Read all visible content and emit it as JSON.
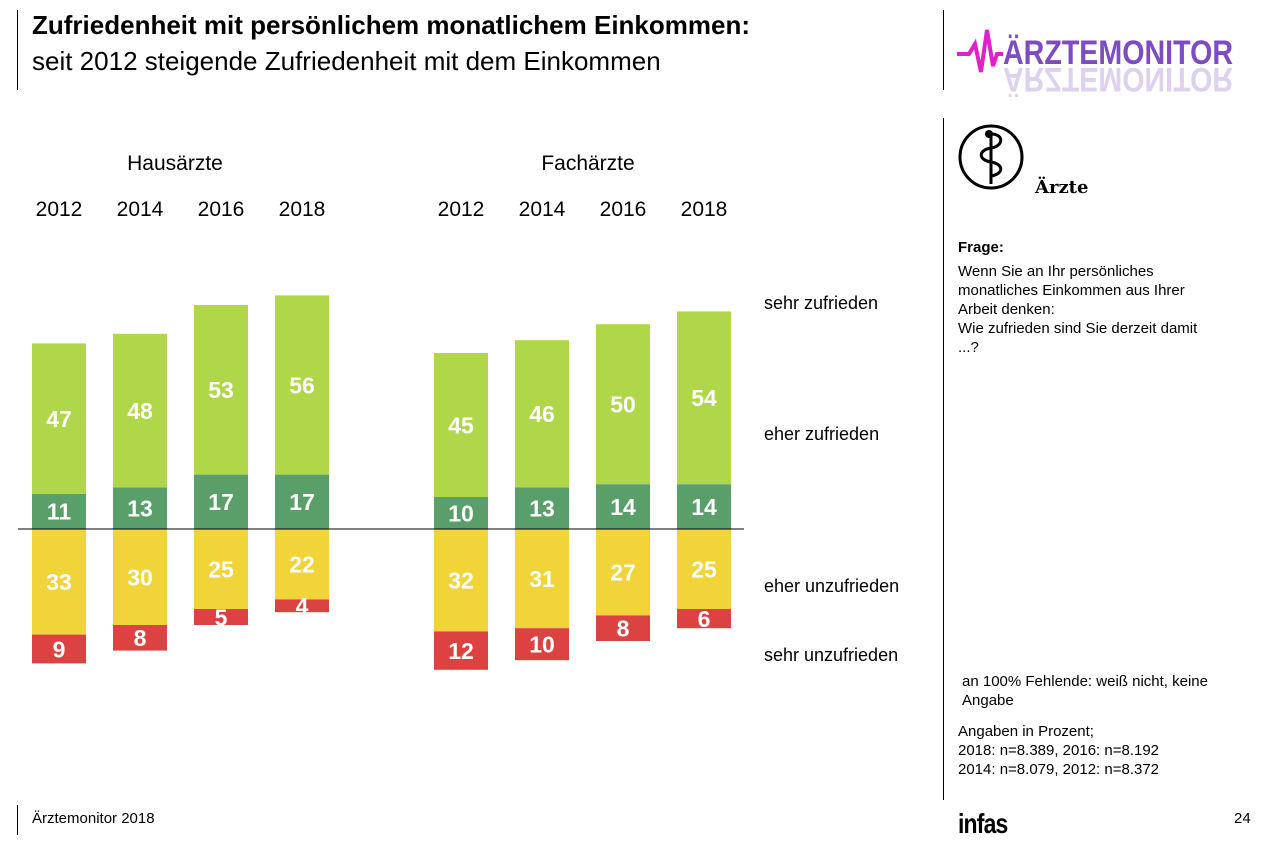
{
  "header": {
    "title": "Zufriedenheit mit persönlichem monatlichem Einkommen:",
    "subtitle": "seit 2012 steigende Zufriedenheit mit dem Einkommen"
  },
  "logo": {
    "text": "ÄRZTEMONITOR",
    "accent_color": "#e020c8",
    "text_color": "#7c4cc0"
  },
  "badge": {
    "label": "Ärzte",
    "icon": "caduceus-icon"
  },
  "chart_data": {
    "type": "bar",
    "stacked": "diverging",
    "groups": [
      {
        "title": "Hausärzte",
        "categories": [
          "2012",
          "2014",
          "2016",
          "2018"
        ]
      },
      {
        "title": "Fachärzte",
        "categories": [
          "2012",
          "2014",
          "2016",
          "2018"
        ]
      }
    ],
    "series": [
      {
        "name": "sehr zufrieden",
        "color": "#5a9e6a",
        "side": "positive",
        "values": [
          [
            11,
            13,
            17,
            17
          ],
          [
            10,
            13,
            14,
            14
          ]
        ]
      },
      {
        "name": "eher zufrieden",
        "color": "#b0d64a",
        "side": "positive",
        "values": [
          [
            47,
            48,
            53,
            56
          ],
          [
            45,
            46,
            50,
            54
          ]
        ]
      },
      {
        "name": "eher unzufrieden",
        "color": "#f0d43a",
        "side": "negative",
        "values": [
          [
            33,
            30,
            25,
            22
          ],
          [
            32,
            31,
            27,
            25
          ]
        ]
      },
      {
        "name": "sehr unzufrieden",
        "color": "#dd4242",
        "side": "negative",
        "values": [
          [
            9,
            8,
            5,
            4
          ],
          [
            12,
            10,
            8,
            6
          ]
        ]
      }
    ],
    "unit": "Prozent"
  },
  "sidebar": {
    "question_label": "Frage:",
    "question_lines": [
      "Wenn Sie an Ihr persönliches",
      "monatliches Einkommen aus Ihrer",
      "Arbeit denken:",
      "Wie zufrieden sind Sie derzeit damit",
      "...?"
    ],
    "missing_note": "an 100% Fehlende: weiß nicht, keine Angabe",
    "basis_lines": [
      "Angaben in Prozent;",
      "2018: n=8.389, 2016: n=8.192",
      "2014: n=8.079, 2012: n=8.372"
    ]
  },
  "footer": {
    "source": "Ärztemonitor 2018",
    "brand": "infas",
    "page_number": "24"
  }
}
